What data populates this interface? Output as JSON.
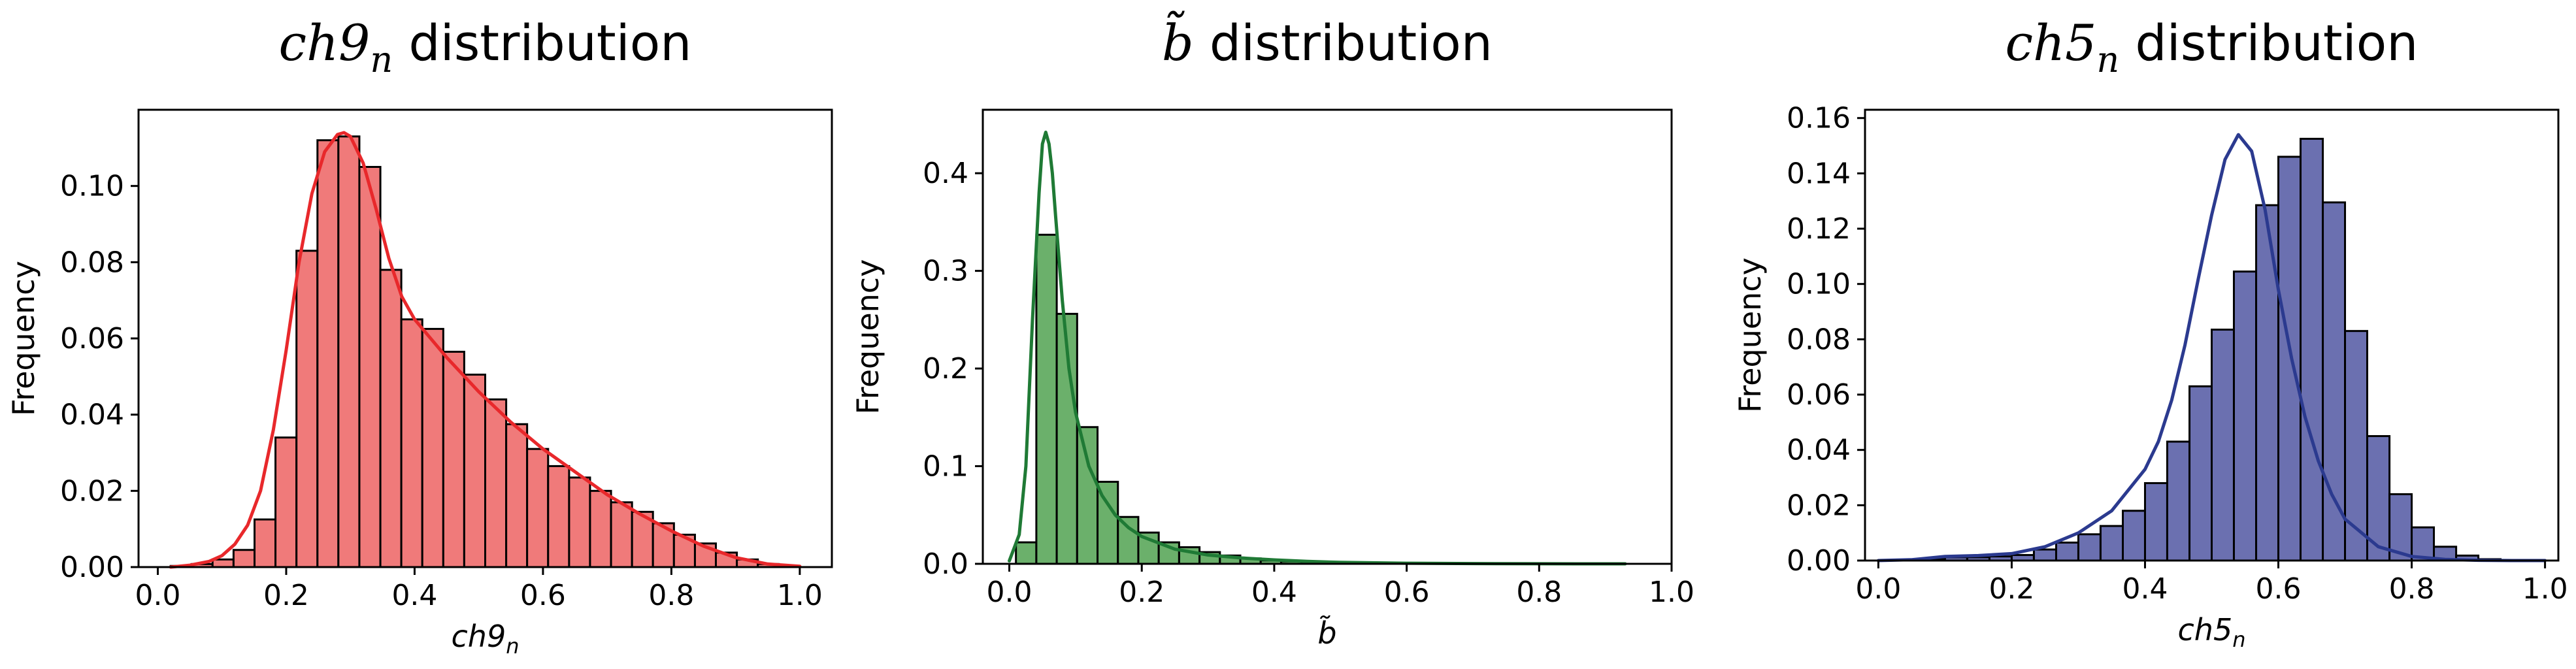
{
  "chart_data": [
    {
      "type": "histogram",
      "title_math": "ch9",
      "title_sub": "n",
      "title_rest": " distribution",
      "xlabel_math": "ch9",
      "xlabel_sub": "n",
      "ylabel": "Frequency",
      "xlim": [
        -0.03,
        1.05
      ],
      "ylim": [
        0,
        0.12
      ],
      "xticks": [
        0.0,
        0.2,
        0.4,
        0.6,
        0.8,
        1.0
      ],
      "xtick_labels": [
        "0.0",
        "0.2",
        "0.4",
        "0.6",
        "0.8",
        "1.0"
      ],
      "yticks": [
        0.0,
        0.02,
        0.04,
        0.06,
        0.08,
        0.1
      ],
      "ytick_labels": [
        "0.00",
        "0.02",
        "0.04",
        "0.06",
        "0.08",
        "0.10"
      ],
      "bar_color": "#f07a7a",
      "line_color": "#e8282b",
      "bin_edges": [
        0.02,
        0.0527,
        0.0853,
        0.118,
        0.1507,
        0.1833,
        0.216,
        0.2487,
        0.2813,
        0.314,
        0.3467,
        0.3793,
        0.412,
        0.4447,
        0.4773,
        0.51,
        0.5427,
        0.5753,
        0.608,
        0.6407,
        0.6733,
        0.706,
        0.7387,
        0.7713,
        0.804,
        0.8367,
        0.8693,
        0.902,
        0.9347,
        0.9673,
        1.0
      ],
      "values": [
        0.0003,
        0.0008,
        0.002,
        0.0045,
        0.0125,
        0.034,
        0.083,
        0.112,
        0.113,
        0.105,
        0.078,
        0.065,
        0.0625,
        0.0565,
        0.0505,
        0.044,
        0.0375,
        0.031,
        0.0265,
        0.0235,
        0.02,
        0.017,
        0.0145,
        0.0115,
        0.0085,
        0.0062,
        0.0038,
        0.002,
        0.0008,
        0.0002
      ],
      "kde_x": [
        0.02,
        0.05,
        0.08,
        0.1,
        0.12,
        0.14,
        0.16,
        0.18,
        0.2,
        0.22,
        0.24,
        0.26,
        0.28,
        0.29,
        0.3,
        0.32,
        0.34,
        0.36,
        0.38,
        0.4,
        0.42,
        0.45,
        0.5,
        0.55,
        0.6,
        0.65,
        0.7,
        0.75,
        0.8,
        0.85,
        0.9,
        0.95,
        1.0
      ],
      "kde_y": [
        0.0,
        0.0005,
        0.0015,
        0.003,
        0.006,
        0.011,
        0.02,
        0.036,
        0.057,
        0.08,
        0.098,
        0.109,
        0.1135,
        0.114,
        0.113,
        0.106,
        0.094,
        0.081,
        0.071,
        0.065,
        0.061,
        0.055,
        0.046,
        0.038,
        0.031,
        0.025,
        0.019,
        0.014,
        0.0095,
        0.0055,
        0.0025,
        0.0008,
        0.0002
      ]
    },
    {
      "type": "histogram",
      "title_math": "b̃",
      "title_sub": "",
      "title_rest": " distribution",
      "xlabel_math": "b̃",
      "xlabel_sub": "",
      "ylabel": "Frequency",
      "xlim": [
        -0.04,
        1.0
      ],
      "ylim": [
        0,
        0.465
      ],
      "xticks": [
        0.0,
        0.2,
        0.4,
        0.6,
        0.8,
        1.0
      ],
      "xtick_labels": [
        "0.0",
        "0.2",
        "0.4",
        "0.6",
        "0.8",
        "1.0"
      ],
      "yticks": [
        0.0,
        0.1,
        0.2,
        0.3,
        0.4
      ],
      "ytick_labels": [
        "0.0",
        "0.1",
        "0.2",
        "0.3",
        "0.4"
      ],
      "bar_color": "#6bb06b",
      "line_color": "#1f7a35",
      "bin_edges": [
        0.01,
        0.0408,
        0.0716,
        0.1024,
        0.1332,
        0.164,
        0.1948,
        0.2256,
        0.2564,
        0.2872,
        0.318,
        0.3488,
        0.3796,
        0.4104,
        0.4412,
        0.472,
        0.5028,
        0.5336,
        0.5644,
        0.5952,
        0.626,
        0.6568,
        0.6876,
        0.7184,
        0.7492,
        0.78,
        0.8108,
        0.8416,
        0.8724,
        0.9032,
        0.934
      ],
      "values": [
        0.022,
        0.337,
        0.256,
        0.14,
        0.084,
        0.048,
        0.032,
        0.022,
        0.017,
        0.012,
        0.0085,
        0.0055,
        0.0035,
        0.0025,
        0.0015,
        0.001,
        0.0007,
        0.0005,
        0.0003,
        0.0002,
        0.0002,
        0.0001,
        0.0001,
        0.0001,
        0.0001,
        0.0,
        0.0,
        0.0,
        0.0,
        0.0
      ],
      "kde_x": [
        0.0,
        0.015,
        0.025,
        0.035,
        0.045,
        0.05,
        0.055,
        0.06,
        0.065,
        0.07,
        0.08,
        0.09,
        0.1,
        0.12,
        0.14,
        0.16,
        0.18,
        0.2,
        0.25,
        0.3,
        0.35,
        0.4,
        0.45,
        0.5,
        0.6,
        0.7,
        0.8,
        0.93
      ],
      "kde_y": [
        0.003,
        0.03,
        0.1,
        0.25,
        0.38,
        0.43,
        0.442,
        0.43,
        0.4,
        0.355,
        0.27,
        0.2,
        0.155,
        0.1,
        0.07,
        0.05,
        0.037,
        0.028,
        0.015,
        0.009,
        0.006,
        0.004,
        0.0025,
        0.0015,
        0.0006,
        0.0003,
        0.0001,
        0.0
      ]
    },
    {
      "type": "histogram",
      "title_math": "ch5",
      "title_sub": "n",
      "title_rest": " distribution",
      "xlabel_math": "ch5",
      "xlabel_sub": "n",
      "ylabel": "Frequency",
      "xlim": [
        -0.02,
        1.02
      ],
      "ylim": [
        0,
        0.163
      ],
      "xticks": [
        0.0,
        0.2,
        0.4,
        0.6,
        0.8,
        1.0
      ],
      "xtick_labels": [
        "0.0",
        "0.2",
        "0.4",
        "0.6",
        "0.8",
        "1.0"
      ],
      "yticks": [
        0.0,
        0.02,
        0.04,
        0.06,
        0.08,
        0.1,
        0.12,
        0.14,
        0.16
      ],
      "ytick_labels": [
        "0.00",
        "0.02",
        "0.04",
        "0.06",
        "0.08",
        "0.10",
        "0.12",
        "0.14",
        "0.16"
      ],
      "bar_color": "#6b70b0",
      "line_color": "#2b3a8f",
      "bin_edges": [
        0.0,
        0.0333,
        0.0667,
        0.1,
        0.1333,
        0.1667,
        0.2,
        0.2333,
        0.2667,
        0.3,
        0.3333,
        0.3667,
        0.4,
        0.4333,
        0.4667,
        0.5,
        0.5333,
        0.5667,
        0.6,
        0.6333,
        0.6667,
        0.7,
        0.7333,
        0.7667,
        0.8,
        0.8333,
        0.8667,
        0.9,
        0.9333,
        0.9667,
        1.0
      ],
      "values": [
        0.0,
        0.0,
        0.0005,
        0.0012,
        0.0012,
        0.0015,
        0.002,
        0.004,
        0.0065,
        0.0095,
        0.0125,
        0.018,
        0.028,
        0.043,
        0.063,
        0.0835,
        0.1045,
        0.1285,
        0.146,
        0.1525,
        0.1295,
        0.083,
        0.045,
        0.024,
        0.012,
        0.005,
        0.0018,
        0.0005,
        0.0002,
        0.0001
      ],
      "kde_x": [
        0.0,
        0.05,
        0.1,
        0.15,
        0.2,
        0.25,
        0.3,
        0.35,
        0.4,
        0.42,
        0.44,
        0.46,
        0.48,
        0.5,
        0.52,
        0.54,
        0.56,
        0.58,
        0.6,
        0.62,
        0.64,
        0.66,
        0.68,
        0.7,
        0.75,
        0.8,
        0.85,
        0.9,
        0.95,
        1.0
      ],
      "kde_y": [
        0.0,
        0.0003,
        0.0015,
        0.0018,
        0.0025,
        0.005,
        0.01,
        0.018,
        0.033,
        0.043,
        0.058,
        0.078,
        0.102,
        0.125,
        0.145,
        0.154,
        0.148,
        0.127,
        0.098,
        0.073,
        0.052,
        0.036,
        0.024,
        0.015,
        0.005,
        0.0015,
        0.0004,
        0.0001,
        0.0,
        0.0
      ]
    }
  ]
}
